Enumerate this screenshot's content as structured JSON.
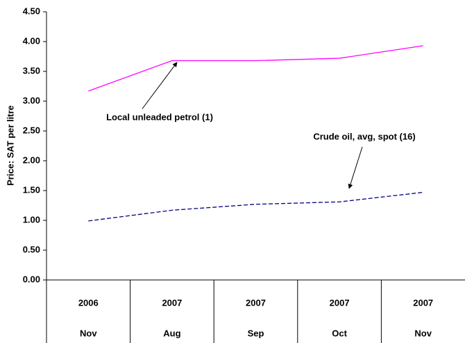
{
  "chart_data": {
    "type": "line",
    "y_label": "Price: SAT per litre",
    "categories": [
      [
        "2006",
        "Nov"
      ],
      [
        "2007",
        "Aug"
      ],
      [
        "2007",
        "Sep"
      ],
      [
        "2007",
        "Oct"
      ],
      [
        "2007",
        "Nov"
      ]
    ],
    "series": [
      {
        "name": "Local unleaded petrol (1)",
        "color": "#ff00ff",
        "dash": false,
        "values": [
          3.17,
          3.68,
          3.68,
          3.72,
          3.93
        ]
      },
      {
        "name": "Crude oil, avg, spot (16)",
        "color": "#000080",
        "dash": true,
        "values": [
          0.99,
          1.17,
          1.27,
          1.31,
          1.47
        ]
      }
    ],
    "ylim": [
      0,
      4.5
    ],
    "yticks": [
      {
        "value": 0,
        "label": "0.00"
      },
      {
        "value": 0.5,
        "label": "0.50"
      },
      {
        "value": 1,
        "label": "1.00"
      },
      {
        "value": 1.5,
        "label": "1.50"
      },
      {
        "value": 2,
        "label": "2.00"
      },
      {
        "value": 2.5,
        "label": "2.50"
      },
      {
        "value": 3,
        "label": "3.00"
      },
      {
        "value": 3.5,
        "label": "3.50"
      },
      {
        "value": 4,
        "label": "4.00"
      },
      {
        "value": 4.5,
        "label": "4.50"
      }
    ],
    "grid": false
  }
}
